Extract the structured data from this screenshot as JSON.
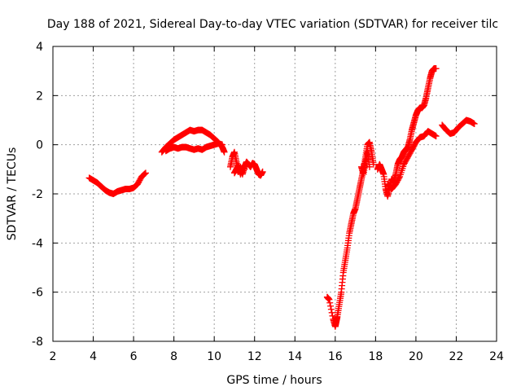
{
  "chart_data": {
    "type": "scatter",
    "title": "Day 188 of 2021, Sidereal Day-to-day VTEC variation (SDTVAR) for receiver tilc",
    "xlabel": "GPS time / hours",
    "ylabel": "SDTVAR / TECUs",
    "xlim": [
      2,
      24
    ],
    "ylim": [
      -8,
      4
    ],
    "xticks": [
      2,
      4,
      6,
      8,
      10,
      12,
      14,
      16,
      18,
      20,
      22,
      24
    ],
    "yticks": [
      -8,
      -6,
      -4,
      -2,
      0,
      2,
      4
    ],
    "grid": true,
    "marker": "+",
    "color": "#ff0000",
    "series": [
      {
        "name": "SDTVAR",
        "traces": [
          [
            [
              3.8,
              -1.35
            ],
            [
              4.0,
              -1.45
            ],
            [
              4.2,
              -1.55
            ],
            [
              4.4,
              -1.7
            ],
            [
              4.6,
              -1.85
            ],
            [
              4.8,
              -1.95
            ],
            [
              5.0,
              -2.0
            ],
            [
              5.2,
              -1.9
            ],
            [
              5.4,
              -1.85
            ],
            [
              5.6,
              -1.8
            ],
            [
              5.8,
              -1.8
            ],
            [
              6.0,
              -1.75
            ],
            [
              6.2,
              -1.6
            ],
            [
              6.4,
              -1.3
            ],
            [
              6.6,
              -1.15
            ]
          ],
          [
            [
              7.4,
              -0.3
            ],
            [
              7.6,
              -0.1
            ],
            [
              7.8,
              0.05
            ],
            [
              8.0,
              0.2
            ],
            [
              8.2,
              0.3
            ],
            [
              8.4,
              0.4
            ],
            [
              8.6,
              0.5
            ],
            [
              8.8,
              0.6
            ],
            [
              9.0,
              0.55
            ],
            [
              9.2,
              0.6
            ],
            [
              9.4,
              0.6
            ],
            [
              9.6,
              0.5
            ],
            [
              9.8,
              0.4
            ],
            [
              10.0,
              0.25
            ],
            [
              10.2,
              0.1
            ],
            [
              10.4,
              -0.1
            ],
            [
              10.5,
              -0.3
            ]
          ],
          [
            [
              7.6,
              -0.25
            ],
            [
              7.8,
              -0.15
            ],
            [
              8.0,
              -0.1
            ],
            [
              8.2,
              -0.15
            ],
            [
              8.4,
              -0.1
            ],
            [
              8.6,
              -0.1
            ],
            [
              8.8,
              -0.15
            ],
            [
              9.0,
              -0.2
            ],
            [
              9.2,
              -0.15
            ],
            [
              9.4,
              -0.2
            ],
            [
              9.6,
              -0.1
            ],
            [
              9.8,
              -0.05
            ],
            [
              10.0,
              0.0
            ],
            [
              10.2,
              0.05
            ],
            [
              10.4,
              0.0
            ]
          ],
          [
            [
              10.8,
              -0.9
            ],
            [
              10.9,
              -0.5
            ],
            [
              11.0,
              -0.3
            ],
            [
              11.1,
              -0.7
            ],
            [
              11.2,
              -1.1
            ],
            [
              11.3,
              -0.9
            ],
            [
              11.4,
              -1.2
            ],
            [
              11.5,
              -0.9
            ],
            [
              11.6,
              -0.7
            ],
            [
              11.7,
              -0.8
            ],
            [
              11.8,
              -0.9
            ],
            [
              11.9,
              -0.75
            ],
            [
              12.0,
              -0.8
            ],
            [
              12.1,
              -1.0
            ],
            [
              12.2,
              -1.2
            ],
            [
              12.3,
              -1.25
            ],
            [
              12.4,
              -1.1
            ]
          ],
          [
            [
              11.0,
              -1.15
            ],
            [
              11.1,
              -1.0
            ],
            [
              11.2,
              -0.85
            ],
            [
              11.3,
              -1.2
            ],
            [
              11.4,
              -0.95
            ],
            [
              11.5,
              -1.0
            ]
          ],
          [
            [
              15.6,
              -6.2
            ],
            [
              15.7,
              -6.3
            ],
            [
              15.9,
              -7.1
            ],
            [
              16.0,
              -7.4
            ],
            [
              16.05,
              -7.2
            ],
            [
              16.1,
              -7.0
            ],
            [
              16.2,
              -6.5
            ],
            [
              16.3,
              -6.0
            ],
            [
              16.4,
              -5.2
            ],
            [
              16.5,
              -4.7
            ],
            [
              16.6,
              -4.2
            ],
            [
              16.7,
              -3.6
            ],
            [
              16.8,
              -3.2
            ],
            [
              16.9,
              -2.8
            ],
            [
              17.0,
              -2.6
            ],
            [
              17.1,
              -2.2
            ],
            [
              17.2,
              -1.8
            ],
            [
              17.3,
              -1.4
            ],
            [
              17.4,
              -1.0
            ],
            [
              17.5,
              -0.5
            ],
            [
              17.6,
              0.0
            ],
            [
              17.7,
              0.1
            ],
            [
              17.8,
              -0.3
            ],
            [
              17.9,
              -0.8
            ]
          ],
          [
            [
              17.3,
              -0.9
            ],
            [
              17.4,
              -1.2
            ],
            [
              17.5,
              -0.7
            ],
            [
              17.6,
              -0.3
            ],
            [
              17.7,
              -0.9
            ]
          ],
          [
            [
              18.1,
              -1.0
            ],
            [
              18.2,
              -0.8
            ],
            [
              18.3,
              -1.0
            ],
            [
              18.4,
              -1.2
            ],
            [
              18.5,
              -1.8
            ],
            [
              18.6,
              -2.1
            ],
            [
              18.7,
              -1.7
            ],
            [
              18.8,
              -1.4
            ],
            [
              18.9,
              -1.5
            ],
            [
              19.0,
              -1.2
            ],
            [
              19.1,
              -0.8
            ],
            [
              19.2,
              -0.6
            ],
            [
              19.3,
              -0.5
            ],
            [
              19.4,
              -0.3
            ],
            [
              19.5,
              -0.2
            ],
            [
              19.6,
              -0.1
            ],
            [
              19.7,
              0.2
            ],
            [
              19.8,
              0.6
            ],
            [
              19.9,
              0.9
            ],
            [
              20.0,
              1.2
            ],
            [
              20.1,
              1.4
            ],
            [
              20.2,
              1.5
            ],
            [
              20.3,
              1.5
            ],
            [
              20.4,
              1.6
            ],
            [
              20.5,
              1.9
            ],
            [
              20.6,
              2.3
            ],
            [
              20.7,
              2.7
            ],
            [
              20.8,
              3.0
            ],
            [
              20.9,
              3.1
            ],
            [
              21.0,
              3.1
            ]
          ],
          [
            [
              18.6,
              -1.6
            ],
            [
              18.8,
              -1.8
            ],
            [
              19.0,
              -1.6
            ],
            [
              19.2,
              -1.3
            ],
            [
              19.4,
              -0.8
            ],
            [
              19.6,
              -0.5
            ],
            [
              19.8,
              -0.2
            ],
            [
              20.0,
              0.1
            ],
            [
              20.2,
              0.3
            ],
            [
              20.4,
              0.35
            ],
            [
              20.6,
              0.55
            ],
            [
              20.8,
              0.45
            ],
            [
              21.0,
              0.35
            ]
          ],
          [
            [
              21.3,
              0.8
            ],
            [
              21.5,
              0.6
            ],
            [
              21.7,
              0.45
            ],
            [
              21.9,
              0.5
            ],
            [
              22.1,
              0.7
            ],
            [
              22.3,
              0.85
            ],
            [
              22.5,
              1.0
            ],
            [
              22.7,
              0.95
            ],
            [
              22.9,
              0.85
            ]
          ]
        ]
      }
    ]
  }
}
